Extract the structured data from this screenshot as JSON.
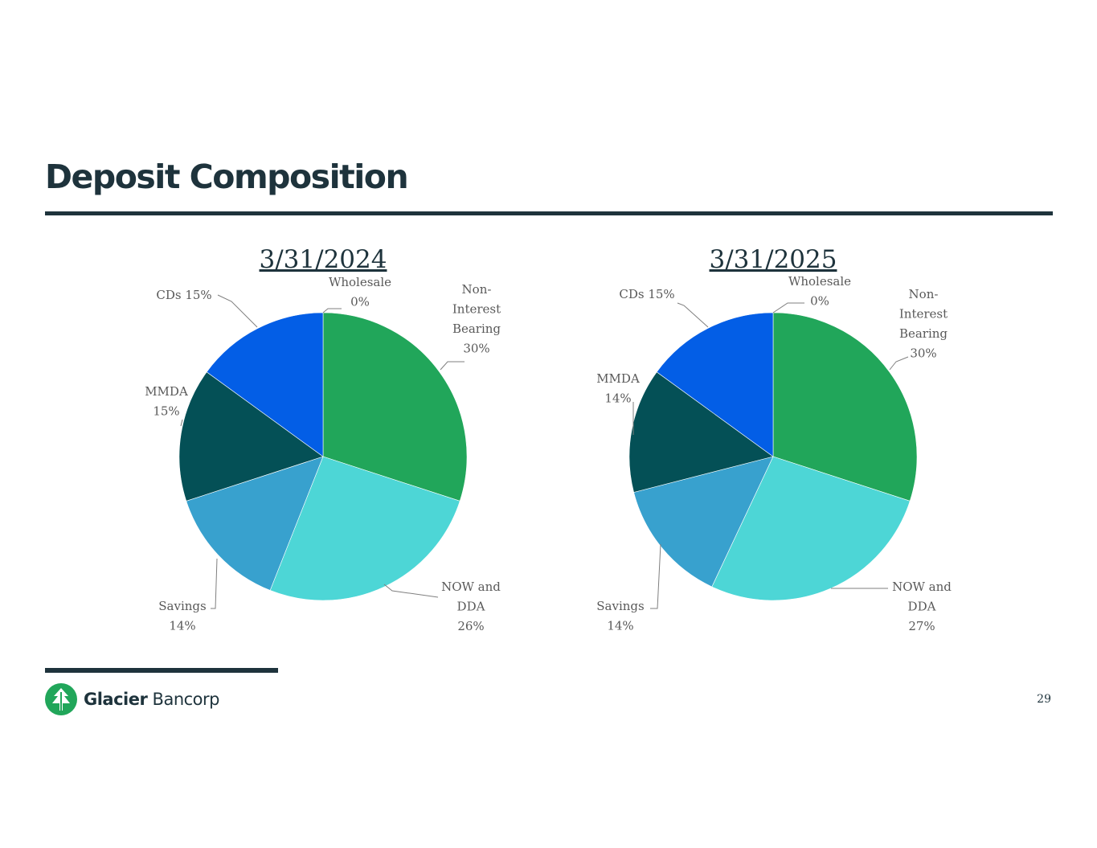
{
  "slide": {
    "title": "Deposit Composition",
    "page_number": "29",
    "colors": {
      "dark": "#1e333c",
      "non_interest": "#21a65a",
      "now_dda": "#4dd6d6",
      "savings": "#38a1ce",
      "mmda": "#045056",
      "cds": "#035ee6",
      "wholesale": "#8a8a8a"
    }
  },
  "logo": {
    "name_bold": "Glacier",
    "name_light": "Bancorp",
    "icon": "tree-icon"
  },
  "chart_data": [
    {
      "type": "pie",
      "title": "3/31/2024",
      "slices": [
        {
          "key": "non_interest",
          "label_lines": [
            "Non-",
            "Interest",
            "Bearing",
            "30%"
          ],
          "value": 30
        },
        {
          "key": "now_dda",
          "label_lines": [
            "NOW and",
            "DDA",
            "26%"
          ],
          "value": 26
        },
        {
          "key": "savings",
          "label_lines": [
            "Savings",
            "14%"
          ],
          "value": 14
        },
        {
          "key": "mmda",
          "label_lines": [
            "MMDA",
            "15%"
          ],
          "value": 15
        },
        {
          "key": "cds",
          "label_lines": [
            "CDs 15%"
          ],
          "value": 15
        },
        {
          "key": "wholesale",
          "label_lines": [
            "Wholesale",
            "0%"
          ],
          "value": 0
        }
      ]
    },
    {
      "type": "pie",
      "title": "3/31/2025",
      "slices": [
        {
          "key": "non_interest",
          "label_lines": [
            "Non-",
            "Interest",
            "Bearing",
            "30%"
          ],
          "value": 30
        },
        {
          "key": "now_dda",
          "label_lines": [
            "NOW and",
            "DDA",
            "27%"
          ],
          "value": 27
        },
        {
          "key": "savings",
          "label_lines": [
            "Savings",
            "14%"
          ],
          "value": 14
        },
        {
          "key": "mmda",
          "label_lines": [
            "MMDA",
            "14%"
          ],
          "value": 14
        },
        {
          "key": "cds",
          "label_lines": [
            "CDs 15%"
          ],
          "value": 15
        },
        {
          "key": "wholesale",
          "label_lines": [
            "Wholesale",
            "0%"
          ],
          "value": 0
        }
      ]
    }
  ]
}
